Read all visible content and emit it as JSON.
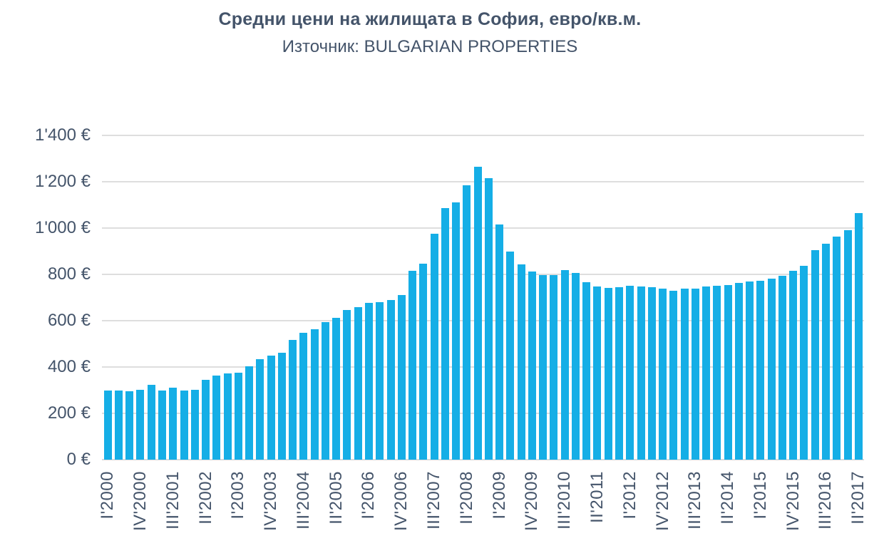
{
  "chart_data": {
    "type": "bar",
    "title": "Средни цени на жилищата в София, евро/кв.м.",
    "subtitle": "Източник: BULGARIAN PROPERTIES",
    "categories": [
      "I'2000",
      "II'2000",
      "III'2000",
      "IV'2000",
      "I'2001",
      "II'2001",
      "III'2001",
      "IV'2001",
      "I'2002",
      "II'2002",
      "III'2002",
      "IV'2002",
      "I'2003",
      "II'2003",
      "III'2003",
      "IV'2003",
      "I'2004",
      "II'2004",
      "III'2004",
      "IV'2004",
      "I'2005",
      "II'2005",
      "III'2005",
      "IV'2005",
      "I'2006",
      "II'2006",
      "III'2006",
      "IV'2006",
      "I'2007",
      "II'2007",
      "III'2007",
      "IV'2007",
      "I'2008",
      "II'2008",
      "III'2008",
      "IV'2008",
      "I'2009",
      "II'2009",
      "III'2009",
      "IV'2009",
      "I'2010",
      "II'2010",
      "III'2010",
      "IV'2010",
      "I'2011",
      "II'2011",
      "III'2011",
      "IV'2011",
      "I'2012",
      "II'2012",
      "III'2012",
      "IV'2012",
      "I'2013",
      "II'2013",
      "III'2013",
      "IV'2013",
      "I'2014",
      "II'2014",
      "III'2014",
      "IV'2014",
      "I'2015",
      "II'2015",
      "III'2015",
      "IV'2015",
      "I'2016",
      "II'2016",
      "III'2016",
      "IV'2016",
      "I'2017",
      "II'2017"
    ],
    "values": [
      297,
      297,
      294,
      303,
      324,
      300,
      310,
      297,
      301,
      346,
      364,
      371,
      375,
      403,
      434,
      448,
      462,
      516,
      548,
      562,
      595,
      612,
      645,
      660,
      676,
      680,
      690,
      712,
      815,
      845,
      975,
      1085,
      1110,
      1185,
      1265,
      1215,
      1015,
      900,
      843,
      813,
      796,
      797,
      817,
      805,
      765,
      748,
      742,
      744,
      750,
      749,
      744,
      738,
      728,
      738,
      740,
      748,
      750,
      753,
      762,
      770,
      773,
      781,
      795,
      815,
      836,
      905,
      933,
      964,
      990,
      1064
    ],
    "ylim": [
      0,
      1400
    ],
    "yticks": [
      0,
      200,
      400,
      600,
      800,
      1000,
      1200,
      1400
    ],
    "ytick_labels": [
      "0 €",
      "200 €",
      "400 €",
      "600 €",
      "800 €",
      "1'000 €",
      "1'200 €",
      "1'400 €"
    ],
    "xtick_every": 3,
    "xtick_labels": [
      "I'2000",
      "IV'2000",
      "III'2001",
      "II'2002",
      "I'2003",
      "IV'2003",
      "III'2004",
      "II'2005",
      "I'2006",
      "IV'2006",
      "III'2007",
      "II'2008",
      "I'2009",
      "IV'2009",
      "III'2010",
      "II'2011",
      "I'2012",
      "IV'2012",
      "III'2013",
      "II'2014",
      "I'2015",
      "IV'2015",
      "III'2016",
      "II'2017"
    ],
    "grid": true,
    "legend": false,
    "colors": {
      "bar": "#15AEE6",
      "text": "#44546A",
      "grid": "#DEDEDE",
      "background": "#FFFFFF"
    }
  }
}
